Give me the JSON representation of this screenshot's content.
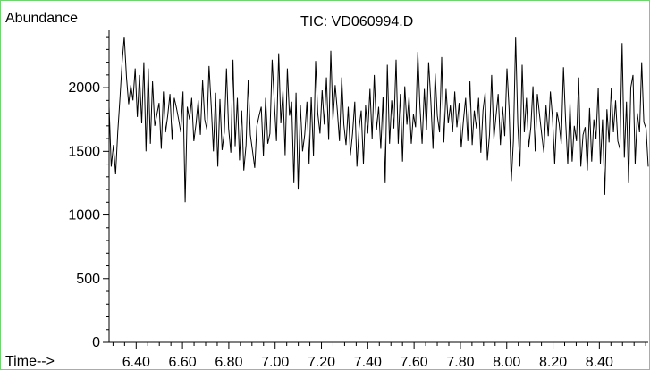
{
  "chart_data": {
    "type": "line",
    "title": "TIC: VD060994.D",
    "ylabel": "Abundance",
    "xlabel": "Time-->",
    "x_range": [
      6.283,
      8.611
    ],
    "ylim": [
      0,
      2450
    ],
    "y_ticks": [
      0,
      500,
      1000,
      1500,
      2000
    ],
    "y_tick_labels": [
      "0",
      "500",
      "1000",
      "1500",
      "2000"
    ],
    "x_ticks": [
      6.4,
      6.6,
      6.8,
      7.0,
      7.2,
      7.4,
      7.6,
      7.8,
      8.0,
      8.2,
      8.4
    ],
    "x_tick_labels": [
      "6.40",
      "6.60",
      "6.80",
      "7.00",
      "7.20",
      "7.40",
      "7.60",
      "7.80",
      "8.00",
      "8.20",
      "8.40"
    ],
    "x_minor_step": 0.05,
    "line_color": "#000000",
    "frame_color": "#6fd66f",
    "grid": false,
    "series": [
      {
        "values": [
          1850,
          1380,
          1550,
          1320,
          1650,
          1920,
          2200,
          2400,
          2080,
          1870,
          2020,
          1900,
          2150,
          1770,
          2100,
          1720,
          2200,
          1500,
          2150,
          1560,
          2050,
          1700,
          1790,
          1880,
          1520,
          1970,
          1650,
          1780,
          1950,
          1590,
          1920,
          1840,
          1750,
          1650,
          1970,
          1100,
          1850,
          1750,
          1920,
          1580,
          1720,
          1900,
          1630,
          2060,
          1750,
          1670,
          2170,
          1850,
          1500,
          1960,
          1380,
          1910,
          1510,
          1650,
          2150,
          1680,
          1490,
          2220,
          1540,
          1920,
          1430,
          1820,
          1350,
          1550,
          2060,
          1630,
          1500,
          1370,
          1700,
          1780,
          1850,
          1460,
          1920,
          1560,
          1640,
          2220,
          1890,
          1580,
          2270,
          1720,
          1980,
          1470,
          2150,
          1780,
          1890,
          1250,
          1960,
          1200,
          1860,
          1500,
          1630,
          1890,
          1400,
          1930,
          1460,
          2210,
          1800,
          1640,
          1980,
          1710,
          2080,
          1590,
          2290,
          1750,
          2020,
          1820,
          1580,
          2080,
          1710,
          1550,
          1850,
          1470,
          1640,
          1890,
          1380,
          1680,
          1820,
          1400,
          1860,
          1640,
          1990,
          1600,
          2100,
          1670,
          1850,
          1520,
          1930,
          1250,
          2180,
          1560,
          1900,
          1680,
          2220,
          1560,
          1950,
          1420,
          2010,
          1710,
          1930,
          1560,
          1790,
          1690,
          2280,
          1850,
          1560,
          1990,
          1670,
          2200,
          1890,
          1520,
          2110,
          1780,
          1650,
          2240,
          1570,
          1990,
          1720,
          1860,
          1650,
          1970,
          1690,
          1880,
          1530,
          1740,
          1920,
          1580,
          2050,
          1550,
          1820,
          1680,
          1920,
          1490,
          1820,
          1960,
          1430,
          1630,
          2100,
          1600,
          1780,
          1950,
          1550,
          1850,
          1620,
          2150,
          1830,
          1260,
          1580,
          2400,
          1720,
          1380,
          2180,
          1650,
          1920,
          1530,
          1690,
          2010,
          1500,
          1950,
          1790,
          1630,
          1490,
          1860,
          1620,
          1970,
          1760,
          1400,
          1810,
          1720,
          1560,
          2160,
          1740,
          1400,
          1880,
          1420,
          1700,
          1580,
          2080,
          1380,
          1630,
          1690,
          1350,
          1840,
          1420,
          1750,
          1600,
          2000,
          1400,
          1750,
          1160,
          1830,
          1570,
          2000,
          1650,
          1900,
          1580,
          1520,
          2350,
          1450,
          1890,
          1250,
          2000,
          2100,
          1400,
          1800,
          1650,
          2200,
          1730,
          1680,
          1380
        ]
      }
    ]
  }
}
